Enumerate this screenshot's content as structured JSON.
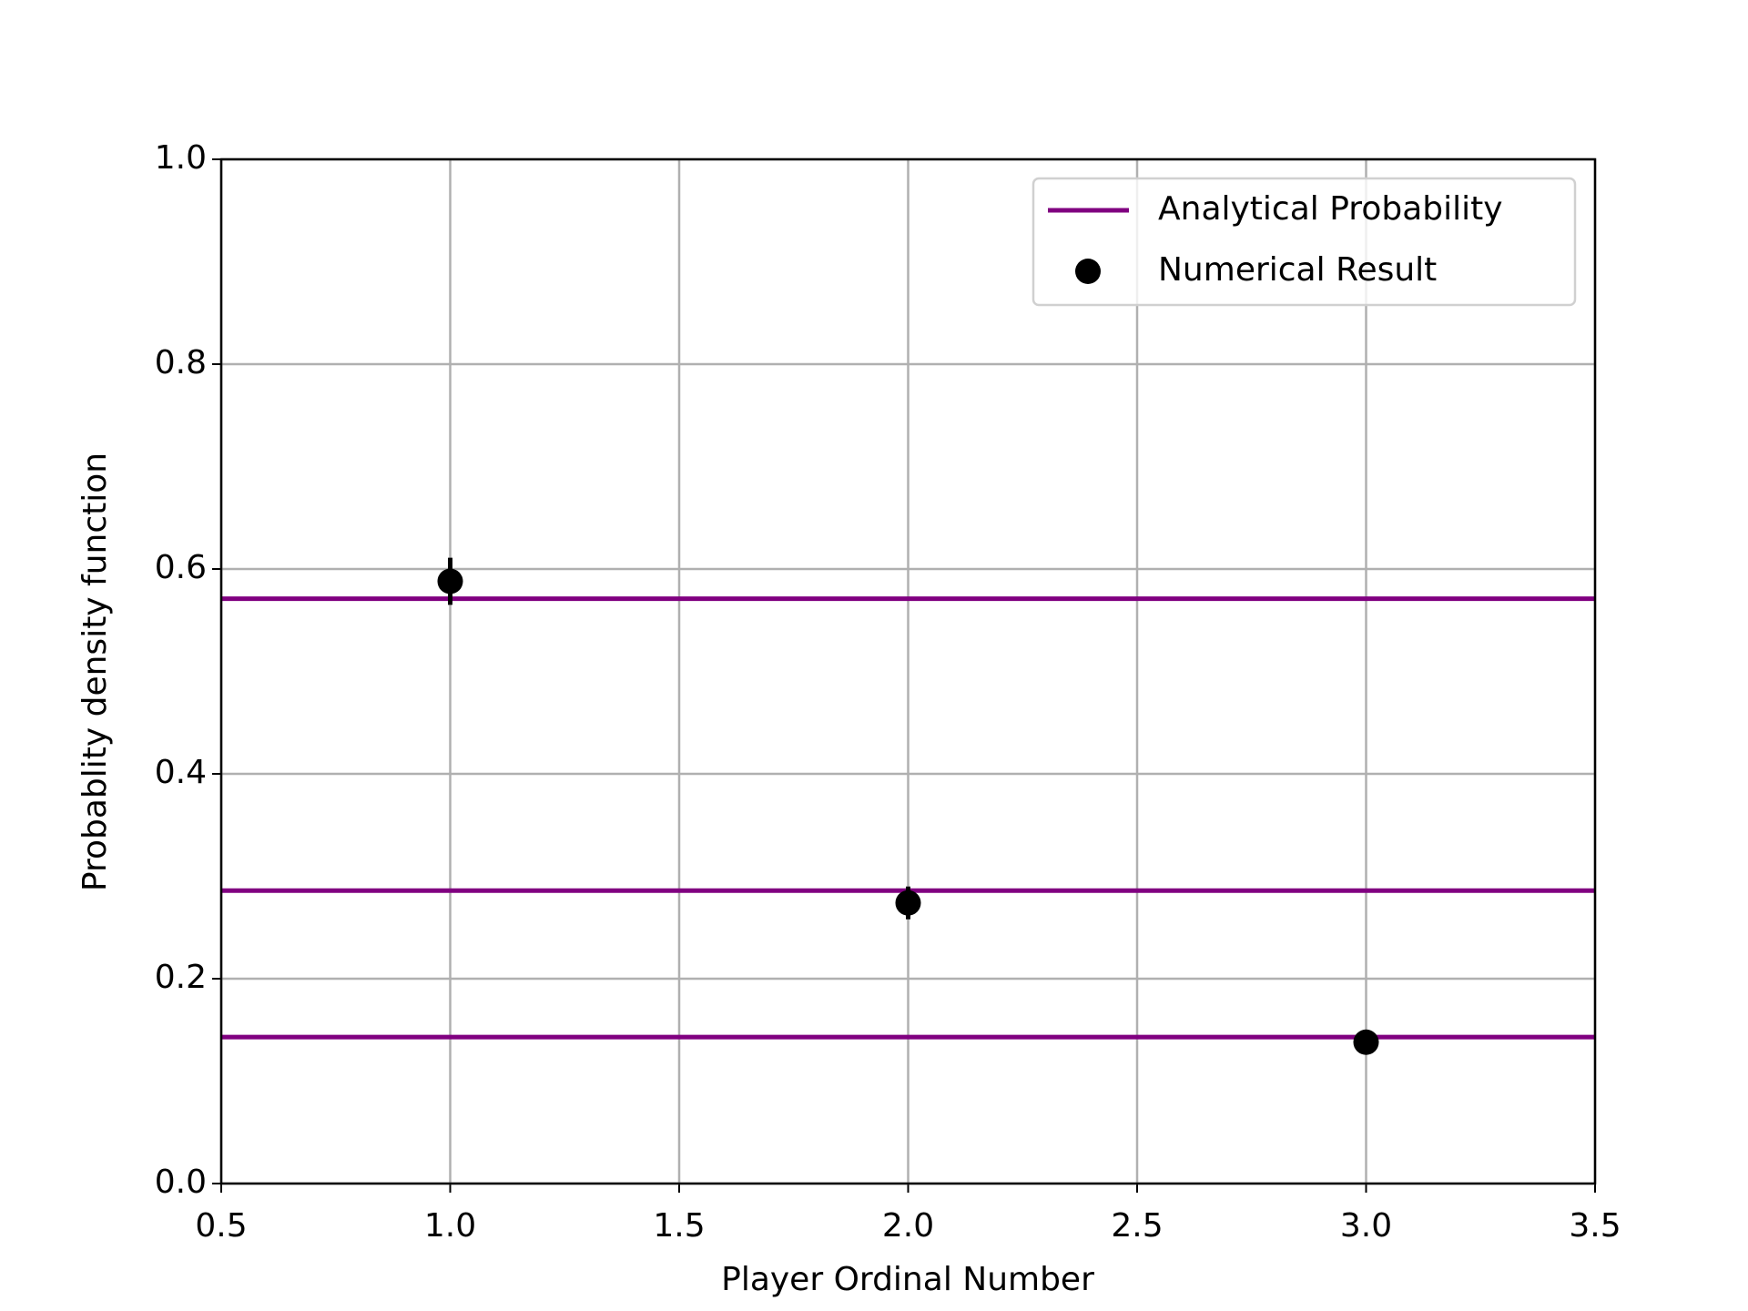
{
  "chart_data": {
    "type": "scatter",
    "xlabel": "Player Ordinal Number",
    "ylabel": "Probablity density function",
    "xlim": [
      0.5,
      3.5
    ],
    "ylim": [
      0,
      1
    ],
    "xticks": [
      0.5,
      {
        "value": 1,
        "label": "1.0"
      },
      1.5,
      {
        "value": 2,
        "label": "2.0"
      },
      2.5,
      {
        "value": 3,
        "label": "3.0"
      },
      3.5
    ],
    "yticks": [
      {
        "value": 0,
        "label": "0.0"
      },
      0.2,
      0.4,
      0.6,
      0.8,
      {
        "value": 1,
        "label": "1.0"
      }
    ],
    "grid": true,
    "legend": "upper right",
    "series": [
      {
        "name": "Analytical Probability",
        "type": "hline",
        "color": "#800080",
        "values": [
          0.571,
          0.286,
          0.143
        ]
      },
      {
        "name": "Numerical Result",
        "type": "errorbar",
        "color": "#000000",
        "x": [
          1,
          2,
          3
        ],
        "values": [
          0.588,
          0.274,
          0.138
        ],
        "errors": [
          0.023,
          0.016,
          0.008
        ]
      }
    ]
  }
}
